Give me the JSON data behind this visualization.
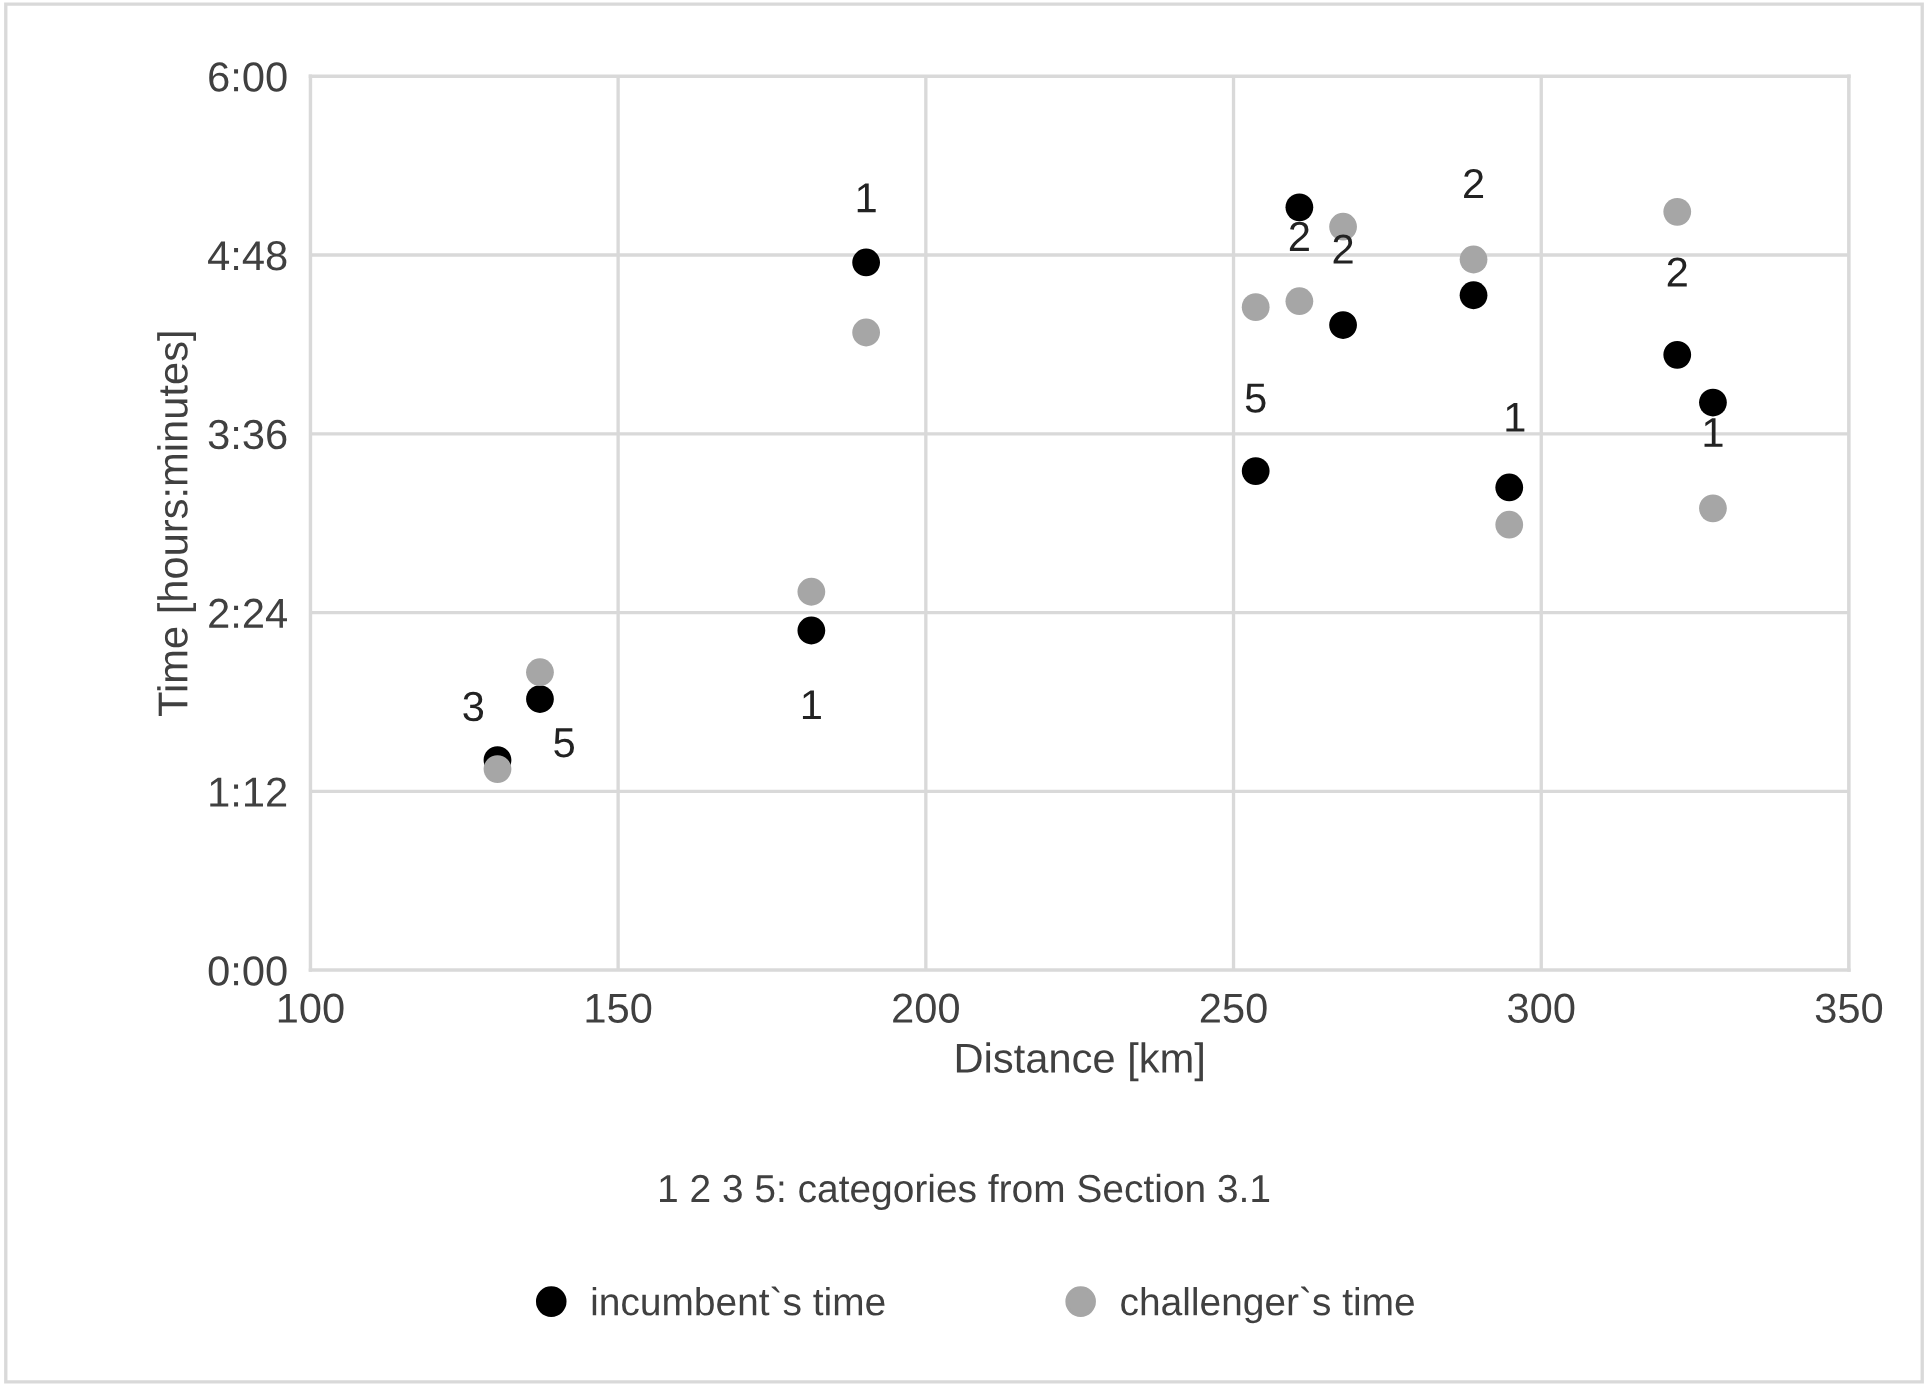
{
  "chart_data": {
    "type": "scatter",
    "xlabel": "Distance [km]",
    "ylabel": "Time [hours:minutes]",
    "xlim": [
      100,
      350
    ],
    "xticks": [
      100,
      150,
      200,
      250,
      300,
      350
    ],
    "ylim": [
      0,
      6
    ],
    "yticks": [
      {
        "value": 0,
        "label": "0:00"
      },
      {
        "value": 1.2,
        "label": "1:12"
      },
      {
        "value": 2.4,
        "label": "2:24"
      },
      {
        "value": 3.6,
        "label": "3:36"
      },
      {
        "value": 4.8,
        "label": "4:48"
      },
      {
        "value": 6,
        "label": "6:00"
      }
    ],
    "grid": true,
    "legend": "bottom",
    "marker": "circle",
    "series": [
      {
        "name": "incumbent`s time",
        "color": "#000000",
        "x": [
          130.4,
          137.3,
          181.4,
          190.3,
          253.6,
          260.7,
          267.8,
          289,
          294.8,
          322.1,
          327.9
        ],
        "values": [
          1.41,
          1.82,
          2.28,
          4.75,
          3.35,
          5.12,
          4.33,
          4.53,
          3.24,
          4.13,
          3.81
        ]
      },
      {
        "name": "challenger`s time",
        "color": "#a6a6a6",
        "x": [
          130.4,
          137.3,
          181.4,
          190.3,
          253.6,
          260.7,
          267.8,
          289,
          294.8,
          322.1,
          327.9
        ],
        "values": [
          1.35,
          2.0,
          2.54,
          4.28,
          4.45,
          4.49,
          4.99,
          4.77,
          2.99,
          5.09,
          3.1
        ]
      }
    ],
    "annotations": [
      {
        "text": "3",
        "x": 137.3,
        "y": 1.82
      },
      {
        "text": "5",
        "x": 130.4,
        "y": 1.41
      },
      {
        "text": "1",
        "x": 181.4,
        "y": 2.28
      },
      {
        "text": "1",
        "x": 190.3,
        "y": 4.75
      },
      {
        "text": "5",
        "x": 253.6,
        "y": 4.45
      },
      {
        "text": "2",
        "x": 260.7,
        "y": 4.49
      },
      {
        "text": "2",
        "x": 267.8,
        "y": 4.33
      },
      {
        "text": "2",
        "x": 289,
        "y": 4.77
      },
      {
        "text": "1",
        "x": 294.8,
        "y": 3.24
      },
      {
        "text": "2",
        "x": 322.1,
        "y": 5.09
      },
      {
        "text": "1",
        "x": 327.9,
        "y": 3.1
      },
      "1 2 3 5: categories from Section 3.1"
    ]
  }
}
